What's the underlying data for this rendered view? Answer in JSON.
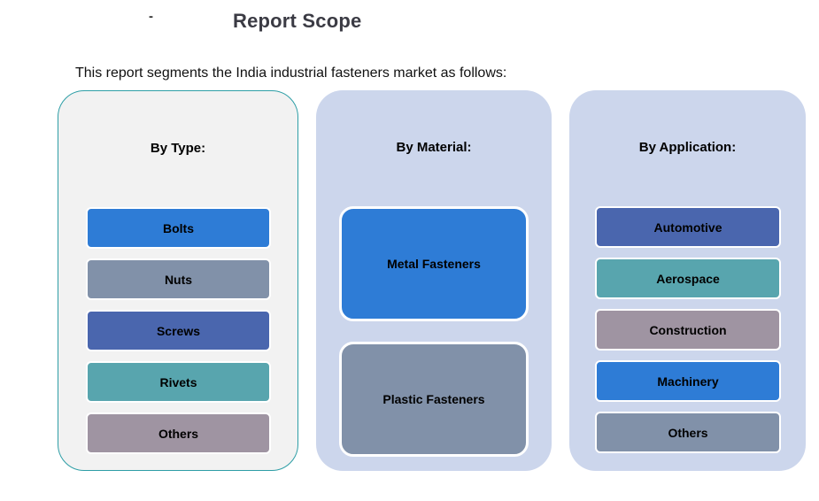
{
  "header": {
    "dash": "-",
    "title": "Report Scope",
    "subtitle": "This report segments the India industrial fasteners market as follows:"
  },
  "colors": {
    "bright_blue": "#2E7CD6",
    "slate_gray": "#8191A9",
    "indigo_blue": "#4A66AE",
    "teal": "#58A5AE",
    "mauve": "#9F94A2",
    "panel_type_bg": "#F2F2F2",
    "panel_type_border": "#2E9EA6",
    "panel_material_bg": "#CCD6EC",
    "panel_application_bg": "#CCD6EC",
    "title_color": "#3B3B44",
    "box_border": "#FFFFFF",
    "box_text": "#000000"
  },
  "columns": [
    {
      "header": "By Type:",
      "items": [
        {
          "label": "Bolts",
          "color": "#2E7CD6"
        },
        {
          "label": "Nuts",
          "color": "#8191A9"
        },
        {
          "label": "Screws",
          "color": "#4A66AE"
        },
        {
          "label": "Rivets",
          "color": "#58A5AE"
        },
        {
          "label": "Others",
          "color": "#9F94A2"
        }
      ]
    },
    {
      "header": "By Material:",
      "items": [
        {
          "label": "Metal Fasteners",
          "color": "#2E7CD6"
        },
        {
          "label": "Plastic Fasteners",
          "color": "#8191A9"
        }
      ]
    },
    {
      "header": "By Application:",
      "items": [
        {
          "label": "Automotive",
          "color": "#4A66AE"
        },
        {
          "label": "Aerospace",
          "color": "#58A5AE"
        },
        {
          "label": "Construction",
          "color": "#9F94A2"
        },
        {
          "label": "Machinery",
          "color": "#2E7CD6"
        },
        {
          "label": "Others",
          "color": "#8191A9"
        }
      ]
    }
  ]
}
